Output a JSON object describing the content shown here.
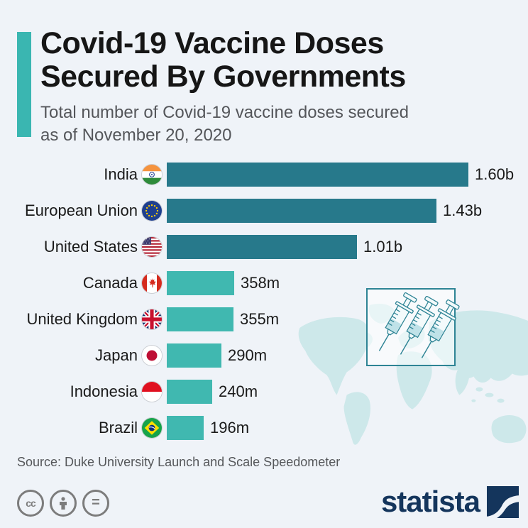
{
  "page": {
    "background": "#eff3f8",
    "accent_color": "#3ab6b1"
  },
  "header": {
    "title_line1": "Covid-19 Vaccine Doses",
    "title_line2": "Secured By Governments",
    "subtitle_line1": "Total number of Covid-19 vaccine doses secured",
    "subtitle_line2": "as of November 20, 2020"
  },
  "chart_data": {
    "type": "bar",
    "orientation": "horizontal",
    "title": "Covid-19 Vaccine Doses Secured By Governments",
    "subtitle": "Total number of Covid-19 vaccine doses secured as of November 20, 2020",
    "categories": [
      "India",
      "European Union",
      "United States",
      "Canada",
      "United Kingdom",
      "Japan",
      "Indonesia",
      "Brazil"
    ],
    "values_millions": [
      1600,
      1430,
      1010,
      358,
      355,
      290,
      240,
      196
    ],
    "value_labels": [
      "1.60b",
      "1.43b",
      "1.01b",
      "358m",
      "355m",
      "290m",
      "240m",
      "196m"
    ],
    "flag_icons": [
      "india-flag-icon",
      "eu-flag-icon",
      "us-flag-icon",
      "canada-flag-icon",
      "uk-flag-icon",
      "japan-flag-icon",
      "indonesia-flag-icon",
      "brazil-flag-icon"
    ],
    "color_tiers": [
      "large",
      "large",
      "large",
      "small",
      "small",
      "small",
      "small",
      "small"
    ],
    "bar_color_large": "#27798b",
    "bar_color_small": "#40b8b0",
    "xlim_millions": [
      0,
      1600
    ],
    "grid": false,
    "legend": false
  },
  "decorations": {
    "map_color": "#cde8ea",
    "syringe_outline_color": "#2e8495",
    "syringe_body_color": "#f3fafb",
    "syringe_liquid_color": "#bfe2e8"
  },
  "footer": {
    "source": "Source: Duke University Launch and Scale Speedometer",
    "license_icons": [
      "cc-icon",
      "cc-by-person-icon",
      "cc-nd-equals-icon"
    ],
    "cc_label": "cc",
    "equals_label": "=",
    "brand": "statista",
    "brand_color": "#14355c"
  }
}
